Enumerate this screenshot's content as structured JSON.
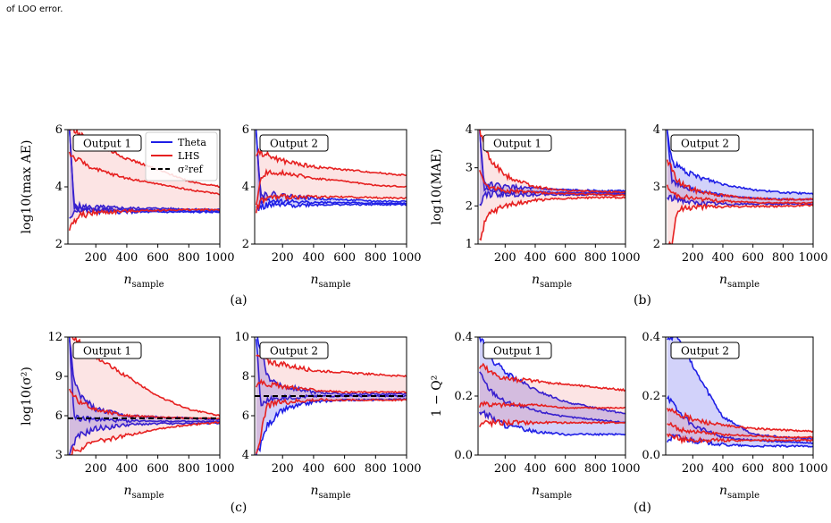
{
  "caption_tail": "of LOO error.",
  "colors": {
    "theta": "#1f1fe6",
    "lhs": "#e62020",
    "ref": "#000000"
  },
  "legend": {
    "entries": [
      {
        "label": "Theta",
        "color": "#1f1fe6",
        "style": "solid"
      },
      {
        "label": "LHS",
        "color": "#e62020",
        "style": "solid"
      },
      {
        "label": "σ²ref",
        "color": "#000000",
        "style": "dashed"
      }
    ],
    "placement": "top-right of panel (a) Output 1"
  },
  "chart_data": [
    {
      "type": "line",
      "panel": "(a)",
      "label": "Output 1",
      "xlabel": "n_sample",
      "ylabel": "log10(max AE)",
      "xlim": [
        20,
        1000
      ],
      "ylim": [
        2,
        6
      ],
      "yticks": [
        2,
        4,
        6
      ],
      "xticks": [
        200,
        400,
        600,
        800,
        1000
      ],
      "series": [
        {
          "name": "Theta",
          "x": [
            30,
            60,
            100,
            200,
            400,
            600,
            800,
            1000
          ],
          "median": [
            6.0,
            3.3,
            3.25,
            3.2,
            3.2,
            3.18,
            3.15,
            3.15
          ],
          "lower": [
            2.8,
            3.2,
            3.2,
            3.15,
            3.12,
            3.12,
            3.12,
            3.12
          ],
          "upper": [
            6.0,
            3.35,
            3.3,
            3.28,
            3.25,
            3.25,
            3.22,
            3.2
          ]
        },
        {
          "name": "LHS",
          "x": [
            30,
            60,
            100,
            200,
            400,
            600,
            800,
            1000
          ],
          "median": [
            5.2,
            5.0,
            4.9,
            4.6,
            4.3,
            4.1,
            3.9,
            3.75
          ],
          "lower": [
            2.5,
            2.8,
            3.0,
            3.1,
            3.15,
            3.18,
            3.2,
            3.2
          ],
          "upper": [
            6.0,
            6.0,
            5.8,
            5.5,
            5.0,
            4.6,
            4.2,
            4.0
          ]
        }
      ]
    },
    {
      "type": "line",
      "panel": "(a)",
      "label": "Output 2",
      "xlabel": "n_sample",
      "ylabel": "",
      "xlim": [
        20,
        1000
      ],
      "ylim": [
        2,
        6
      ],
      "yticks": [
        2,
        4,
        6
      ],
      "xticks": [
        200,
        400,
        600,
        800,
        1000
      ],
      "series": [
        {
          "name": "Theta",
          "x": [
            30,
            60,
            100,
            200,
            400,
            600,
            800,
            1000
          ],
          "median": [
            6.0,
            3.5,
            3.55,
            3.5,
            3.45,
            3.45,
            3.42,
            3.42
          ],
          "lower": [
            3.2,
            3.3,
            3.35,
            3.35,
            3.38,
            3.38,
            3.38,
            3.38
          ],
          "upper": [
            6.0,
            3.7,
            3.75,
            3.7,
            3.6,
            3.55,
            3.5,
            3.5
          ]
        },
        {
          "name": "LHS",
          "x": [
            30,
            60,
            100,
            200,
            400,
            600,
            800,
            1000
          ],
          "median": [
            3.4,
            4.3,
            4.5,
            4.5,
            4.3,
            4.2,
            4.05,
            4.0
          ],
          "lower": [
            3.2,
            3.5,
            3.6,
            3.65,
            3.65,
            3.65,
            3.62,
            3.6
          ],
          "upper": [
            5.2,
            5.2,
            5.1,
            4.9,
            4.7,
            4.6,
            4.5,
            4.4
          ]
        }
      ]
    },
    {
      "type": "line",
      "panel": "(b)",
      "label": "Output 1",
      "xlabel": "n_sample",
      "ylabel": "log10(MAE)",
      "xlim": [
        20,
        1000
      ],
      "ylim": [
        1,
        4
      ],
      "yticks": [
        1,
        2,
        3,
        4
      ],
      "xticks": [
        200,
        400,
        600,
        800,
        1000
      ],
      "series": [
        {
          "name": "Theta",
          "x": [
            30,
            60,
            100,
            200,
            400,
            600,
            800,
            1000
          ],
          "median": [
            4.0,
            2.45,
            2.42,
            2.38,
            2.36,
            2.35,
            2.34,
            2.34
          ],
          "lower": [
            2.0,
            2.35,
            2.3,
            2.3,
            2.3,
            2.3,
            2.3,
            2.3
          ],
          "upper": [
            4.0,
            2.6,
            2.55,
            2.5,
            2.45,
            2.42,
            2.4,
            2.4
          ]
        },
        {
          "name": "LHS",
          "x": [
            30,
            60,
            100,
            200,
            400,
            600,
            800,
            1000
          ],
          "median": [
            3.0,
            2.6,
            2.5,
            2.4,
            2.35,
            2.32,
            2.3,
            2.28
          ],
          "lower": [
            1.1,
            1.5,
            1.8,
            2.0,
            2.15,
            2.2,
            2.22,
            2.22
          ],
          "upper": [
            4.0,
            3.6,
            3.2,
            2.8,
            2.5,
            2.4,
            2.38,
            2.36
          ]
        }
      ]
    },
    {
      "type": "line",
      "panel": "(b)",
      "label": "Output 2",
      "xlabel": "n_sample",
      "ylabel": "",
      "xlim": [
        20,
        1000
      ],
      "ylim": [
        2,
        4
      ],
      "yticks": [
        2,
        3,
        4
      ],
      "xticks": [
        200,
        400,
        600,
        800,
        1000
      ],
      "series": [
        {
          "name": "Theta",
          "x": [
            30,
            60,
            100,
            200,
            400,
            600,
            800,
            1000
          ],
          "median": [
            4.0,
            3.1,
            3.05,
            2.95,
            2.85,
            2.8,
            2.78,
            2.78
          ],
          "lower": [
            2.8,
            2.8,
            2.8,
            2.72,
            2.7,
            2.7,
            2.7,
            2.7
          ],
          "upper": [
            4.0,
            3.45,
            3.35,
            3.2,
            3.05,
            2.95,
            2.9,
            2.88
          ]
        },
        {
          "name": "LHS",
          "x": [
            30,
            60,
            100,
            200,
            400,
            600,
            800,
            1000
          ],
          "median": [
            3.0,
            2.9,
            2.85,
            2.8,
            2.75,
            2.73,
            2.72,
            2.72
          ],
          "lower": [
            2.0,
            2.0,
            2.6,
            2.65,
            2.65,
            2.66,
            2.66,
            2.68
          ],
          "upper": [
            3.5,
            3.3,
            3.1,
            2.95,
            2.85,
            2.8,
            2.78,
            2.78
          ]
        }
      ]
    },
    {
      "type": "line",
      "panel": "(c)",
      "label": "Output 1",
      "xlabel": "n_sample",
      "ylabel": "log10(σ²)",
      "xlim": [
        20,
        1000
      ],
      "ylim": [
        3,
        12
      ],
      "yticks": [
        3,
        6,
        9,
        12
      ],
      "xticks": [
        200,
        400,
        600,
        800,
        1000
      ],
      "reference_line": 5.8,
      "series": [
        {
          "name": "Theta",
          "x": [
            30,
            60,
            100,
            200,
            400,
            600,
            800,
            1000
          ],
          "median": [
            12.0,
            6.0,
            5.8,
            5.7,
            5.6,
            5.6,
            5.55,
            5.55
          ],
          "lower": [
            3.0,
            4.0,
            4.5,
            5.0,
            5.3,
            5.4,
            5.4,
            5.45
          ],
          "upper": [
            12.0,
            8.5,
            7.5,
            6.5,
            6.0,
            5.9,
            5.8,
            5.7
          ]
        },
        {
          "name": "LHS",
          "x": [
            30,
            60,
            100,
            200,
            400,
            600,
            800,
            1000
          ],
          "median": [
            8.0,
            7.5,
            7.0,
            6.5,
            6.0,
            5.9,
            5.8,
            5.8
          ],
          "lower": [
            3.0,
            3.5,
            3.5,
            4.0,
            4.5,
            5.0,
            5.3,
            5.5
          ],
          "upper": [
            12.0,
            12.0,
            11.5,
            10.5,
            9.0,
            7.5,
            6.5,
            6.0
          ]
        }
      ]
    },
    {
      "type": "line",
      "panel": "(c)",
      "label": "Output 2",
      "xlabel": "n_sample",
      "ylabel": "",
      "xlim": [
        20,
        1000
      ],
      "ylim": [
        4,
        10
      ],
      "yticks": [
        4,
        6,
        8,
        10
      ],
      "xticks": [
        200,
        400,
        600,
        800,
        1000
      ],
      "reference_line": 7.0,
      "series": [
        {
          "name": "Theta",
          "x": [
            30,
            60,
            100,
            200,
            400,
            600,
            800,
            1000
          ],
          "median": [
            10.0,
            6.5,
            6.8,
            6.9,
            7.0,
            7.0,
            7.0,
            7.0
          ],
          "lower": [
            4.0,
            4.5,
            5.5,
            6.3,
            6.7,
            6.8,
            6.8,
            6.85
          ],
          "upper": [
            10.0,
            9.5,
            8.0,
            7.5,
            7.2,
            7.1,
            7.1,
            7.1
          ]
        },
        {
          "name": "LHS",
          "x": [
            30,
            60,
            100,
            200,
            400,
            600,
            800,
            1000
          ],
          "median": [
            7.5,
            7.8,
            7.6,
            7.5,
            7.3,
            7.2,
            7.2,
            7.2
          ],
          "lower": [
            4.0,
            5.0,
            6.5,
            6.7,
            6.8,
            6.8,
            6.8,
            6.8
          ],
          "upper": [
            9.0,
            9.0,
            8.8,
            8.6,
            8.3,
            8.2,
            8.1,
            8.0
          ]
        }
      ]
    },
    {
      "type": "line",
      "panel": "(d)",
      "label": "Output 1",
      "xlabel": "n_sample",
      "ylabel": "1 − Q²",
      "xlim": [
        20,
        1000
      ],
      "ylim": [
        0.0,
        0.4
      ],
      "yticks": [
        0.0,
        0.2,
        0.4
      ],
      "xticks": [
        200,
        400,
        600,
        800,
        1000
      ],
      "series": [
        {
          "name": "Theta",
          "x": [
            30,
            60,
            100,
            200,
            400,
            600,
            800,
            1000
          ],
          "median": [
            0.28,
            0.25,
            0.22,
            0.18,
            0.15,
            0.13,
            0.12,
            0.11
          ],
          "lower": [
            0.15,
            0.14,
            0.13,
            0.1,
            0.08,
            0.07,
            0.07,
            0.07
          ],
          "upper": [
            0.4,
            0.38,
            0.33,
            0.28,
            0.22,
            0.18,
            0.16,
            0.14
          ]
        },
        {
          "name": "LHS",
          "x": [
            30,
            60,
            100,
            200,
            400,
            600,
            800,
            1000
          ],
          "median": [
            0.17,
            0.18,
            0.17,
            0.17,
            0.17,
            0.16,
            0.16,
            0.16
          ],
          "lower": [
            0.1,
            0.11,
            0.11,
            0.11,
            0.11,
            0.11,
            0.11,
            0.11
          ],
          "upper": [
            0.3,
            0.3,
            0.28,
            0.26,
            0.25,
            0.24,
            0.23,
            0.22
          ]
        }
      ]
    },
    {
      "type": "line",
      "panel": "(d)",
      "label": "Output 2",
      "xlabel": "n_sample",
      "ylabel": "",
      "xlim": [
        20,
        1000
      ],
      "ylim": [
        0.0,
        0.4
      ],
      "yticks": [
        0.0,
        0.2,
        0.4
      ],
      "xticks": [
        200,
        400,
        600,
        800,
        1000
      ],
      "series": [
        {
          "name": "Theta",
          "x": [
            30,
            60,
            100,
            200,
            400,
            600,
            800,
            1000
          ],
          "median": [
            0.2,
            0.18,
            0.15,
            0.1,
            0.06,
            0.05,
            0.045,
            0.04
          ],
          "lower": [
            0.05,
            0.06,
            0.06,
            0.05,
            0.035,
            0.03,
            0.03,
            0.03
          ],
          "upper": [
            0.4,
            0.4,
            0.4,
            0.3,
            0.13,
            0.07,
            0.06,
            0.055
          ]
        },
        {
          "name": "LHS",
          "x": [
            30,
            60,
            100,
            200,
            400,
            600,
            800,
            1000
          ],
          "median": [
            0.1,
            0.1,
            0.09,
            0.08,
            0.07,
            0.065,
            0.06,
            0.06
          ],
          "lower": [
            0.06,
            0.06,
            0.055,
            0.05,
            0.05,
            0.05,
            0.05,
            0.05
          ],
          "upper": [
            0.15,
            0.16,
            0.14,
            0.12,
            0.1,
            0.09,
            0.085,
            0.08
          ]
        }
      ]
    }
  ],
  "sublabels": [
    "(a)",
    "(b)",
    "(c)",
    "(d)"
  ]
}
